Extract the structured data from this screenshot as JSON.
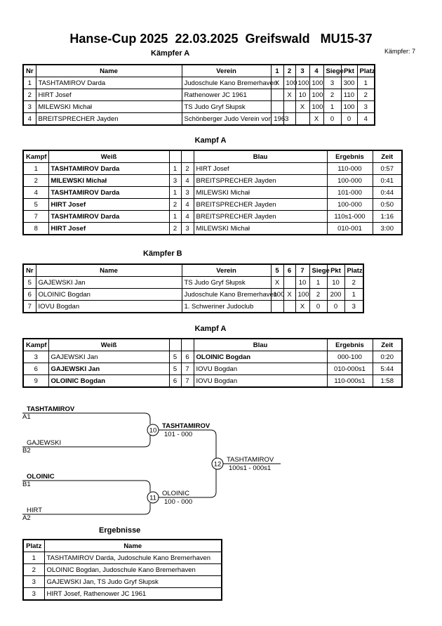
{
  "header": {
    "title": "Hanse-Cup 2025  22.03.2025  Greifswald   MU15-37",
    "count": "Kämpfer: 7"
  },
  "pool_a": {
    "title": "Kämpfer A",
    "columns": [
      "Nr",
      "Name",
      "Verein",
      "1",
      "2",
      "3",
      "4",
      "Siege",
      "Pkt",
      "Platz"
    ],
    "rows": [
      [
        "1",
        "TASHTAMIROV Darda",
        "Judoschule Kano Bremerhaven",
        "X",
        "100",
        "100",
        "100",
        "3",
        "300",
        "1"
      ],
      [
        "2",
        "HIRT Josef",
        "Rathenower JC 1961",
        null,
        "X",
        "10",
        "100",
        "2",
        "110",
        "2"
      ],
      [
        "3",
        "MILEWSKI Michał",
        "TS Judo Gryf Słupsk",
        null,
        null,
        "X",
        "100",
        "1",
        "100",
        "3"
      ],
      [
        "4",
        "BREITSPRECHER Jayden",
        "Schönberger Judo Verein von 1963",
        null,
        null,
        null,
        "X",
        "0",
        "0",
        "4"
      ]
    ]
  },
  "fights_a": {
    "title": "Kampf A",
    "columns": [
      "Kampf",
      "Weiß",
      null,
      null,
      "Blau",
      "Ergebnis",
      "Zeit"
    ],
    "rows": [
      [
        "1",
        "TASHTAMIROV Darda",
        "1",
        "2",
        "HIRT Josef",
        "110-000",
        "0:57"
      ],
      [
        "2",
        "MILEWSKI Michał",
        "3",
        "4",
        "BREITSPRECHER Jayden",
        "100-000",
        "0:41"
      ],
      [
        "4",
        "TASHTAMIROV Darda",
        "1",
        "3",
        "MILEWSKI Michał",
        "101-000",
        "0:44"
      ],
      [
        "5",
        "HIRT Josef",
        "2",
        "4",
        "BREITSPRECHER Jayden",
        "100-000",
        "0:50"
      ],
      [
        "7",
        "TASHTAMIROV Darda",
        "1",
        "4",
        "BREITSPRECHER Jayden",
        "110s1-000",
        "1:16"
      ],
      [
        "8",
        "HIRT Josef",
        "2",
        "3",
        "MILEWSKI Michał",
        "010-001",
        "3:00"
      ]
    ]
  },
  "pool_b": {
    "title": "Kämpfer B",
    "columns": [
      "Nr",
      "Name",
      "Verein",
      "5",
      "6",
      "7",
      "Siege",
      "Pkt",
      "Platz"
    ],
    "rows": [
      [
        "5",
        "GAJEWSKI Jan",
        "TS Judo Gryf Słupsk",
        "X",
        null,
        "10",
        "1",
        "10",
        "2"
      ],
      [
        "6",
        "OLOINIC Bogdan",
        "Judoschule Kano Bremerhaven",
        "100",
        "X",
        "100",
        "2",
        "200",
        "1"
      ],
      [
        "7",
        "IOVU Bogdan",
        "1. Schweriner Judoclub",
        null,
        null,
        "X",
        "0",
        "0",
        "3"
      ]
    ]
  },
  "fights_b": {
    "title": "Kampf A",
    "columns": [
      "Kampf",
      "Weiß",
      null,
      null,
      "Blau",
      "Ergebnis",
      "Zeit"
    ],
    "rows": [
      [
        "3",
        "GAJEWSKI Jan",
        "5",
        "6",
        "OLOINIC Bogdan",
        "000-100",
        "0:20"
      ],
      [
        "6",
        "GAJEWSKI Jan",
        "5",
        "7",
        "IOVU Bogdan",
        "010-000s1",
        "5:44"
      ],
      [
        "9",
        "OLOINIC Bogdan",
        "6",
        "7",
        "IOVU Bogdan",
        "110-000s1",
        "1:58"
      ]
    ]
  },
  "bracket": {
    "entries": [
      {
        "name": "TASHTAMIROV",
        "seed": "A1"
      },
      {
        "name": "GAJEWSKI",
        "seed": "B2"
      },
      {
        "name": "OLOINIC",
        "seed": "B1"
      },
      {
        "name": "HIRT",
        "seed": "A2"
      }
    ],
    "fights": [
      {
        "number": "10",
        "winner": "TASHTAMIROV",
        "score": "101 - 000"
      },
      {
        "number": "11",
        "winner": "OLOINIC",
        "score": "100 - 000"
      },
      {
        "number": "12",
        "winner": "TASHTAMIROV",
        "score": "100s1 - 000s1"
      }
    ]
  },
  "results": {
    "title": "Ergebnisse",
    "columns": [
      "Platz",
      "Name"
    ],
    "rows": [
      [
        "1",
        "TASHTAMIROV Darda, Judoschule Kano Bremerhaven"
      ],
      [
        "2",
        "OLOINIC Bogdan, Judoschule Kano Bremerhaven"
      ],
      [
        "3",
        "GAJEWSKI Jan, TS Judo Gryf Słupsk"
      ],
      [
        "3",
        "HIRT Josef, Rathenower JC 1961"
      ]
    ]
  }
}
